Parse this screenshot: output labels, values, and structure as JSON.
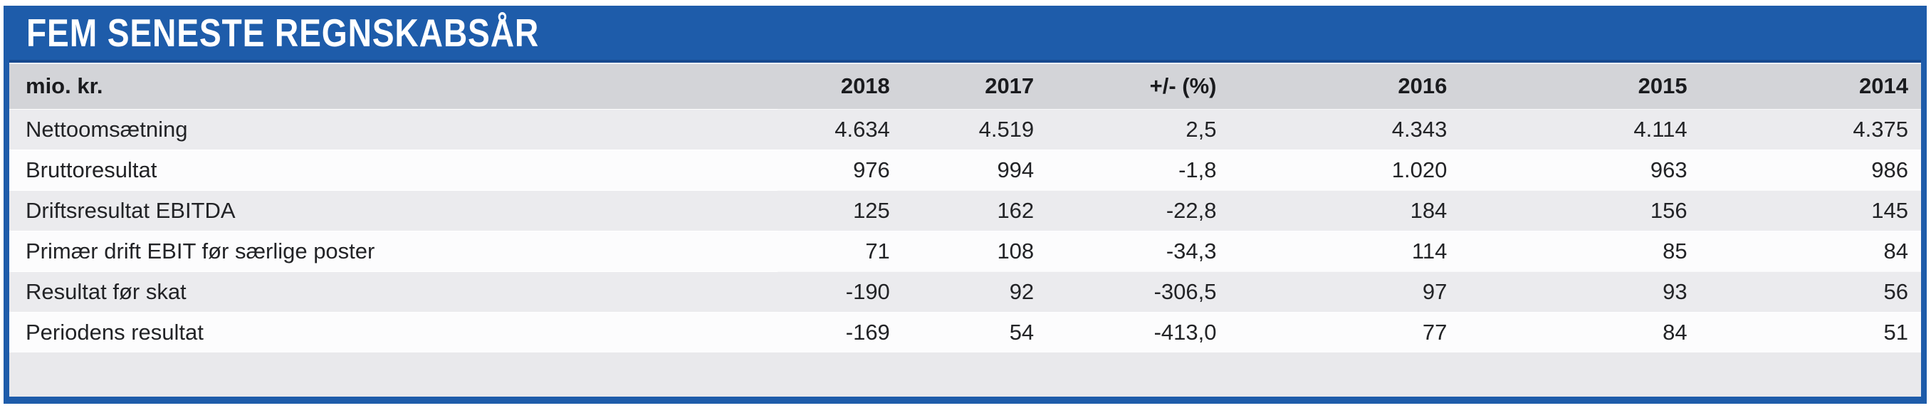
{
  "panel": {
    "title": "FEM SENESTE REGNSKABSÅR"
  },
  "colors": {
    "accent_blue": "#1e5caa",
    "title_divider_blue": "#17498e",
    "header_row_bg": "#d3d4d8",
    "stripe_row_bg": "#ebebee",
    "white_row_bg": "#fcfcfd",
    "footer_bg": "#e9e9ec",
    "text": "#222326"
  },
  "chart_data": {
    "type": "table",
    "title": "FEM SENESTE REGNSKABSÅR",
    "unit": "mio. kr.",
    "columns": [
      "2018",
      "2017",
      "+/- (%)",
      "2016",
      "2015",
      "2014"
    ],
    "rows": [
      {
        "label": "Nettoomsætning",
        "values": [
          "4.634",
          "4.519",
          "2,5",
          "4.343",
          "4.114",
          "4.375"
        ]
      },
      {
        "label": "Bruttoresultat",
        "values": [
          "976",
          "994",
          "-1,8",
          "1.020",
          "963",
          "986"
        ]
      },
      {
        "label": "Driftsresultat EBITDA",
        "values": [
          "125",
          "162",
          "-22,8",
          "184",
          "156",
          "145"
        ]
      },
      {
        "label": "Primær drift EBIT før særlige poster",
        "values": [
          "71",
          "108",
          "-34,3",
          "114",
          "85",
          "84"
        ]
      },
      {
        "label": "Resultat før skat",
        "values": [
          "-190",
          "92",
          "-306,5",
          "97",
          "93",
          "56"
        ]
      },
      {
        "label": "Periodens resultat",
        "values": [
          "-169",
          "54",
          "-413,0",
          "77",
          "84",
          "51"
        ]
      }
    ]
  }
}
